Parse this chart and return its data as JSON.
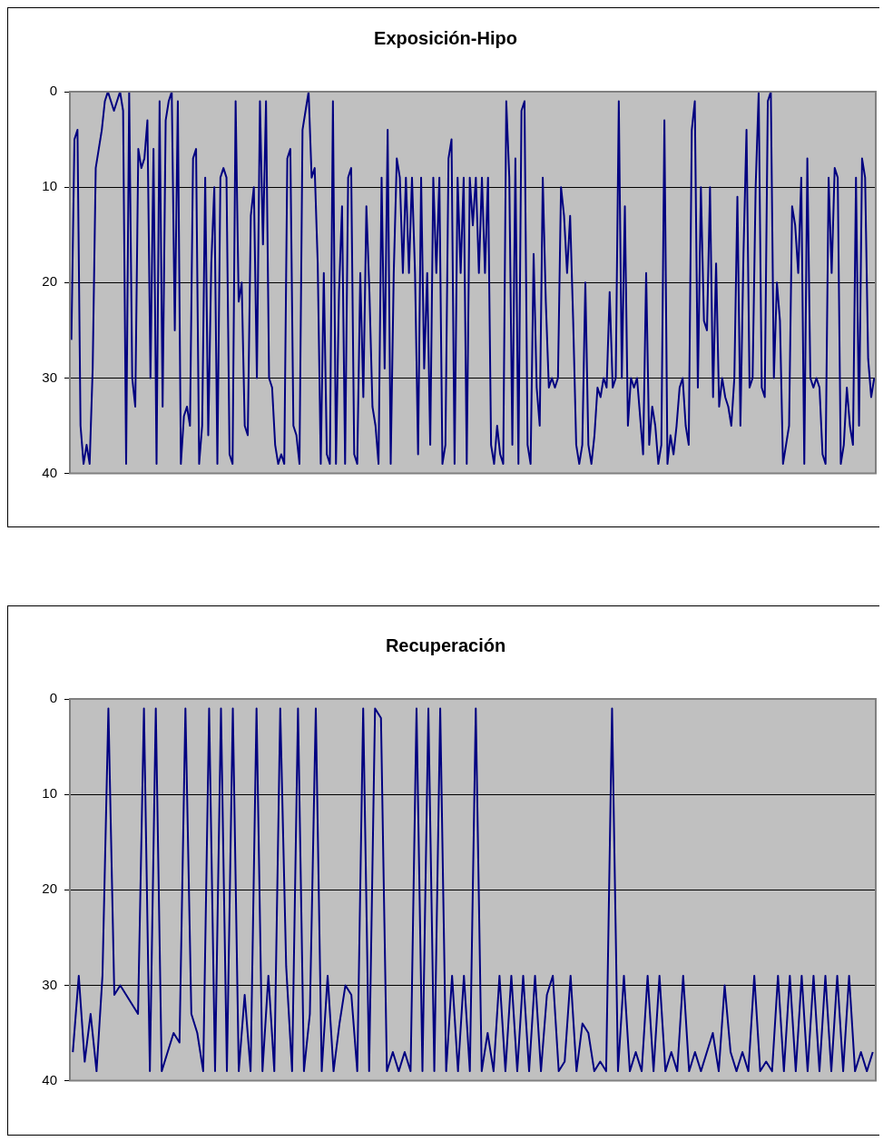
{
  "chart_data": [
    {
      "type": "line",
      "title": "Exposición-Hipo",
      "ylim": [
        40,
        0
      ],
      "yticks": [
        0,
        10,
        20,
        30,
        40
      ],
      "grid": "y",
      "marker": "none",
      "line_style": "solid",
      "categories": [
        null,
        null,
        null,
        null,
        null,
        null,
        null,
        null,
        null,
        null,
        null,
        null,
        null,
        null,
        null,
        null,
        null,
        null,
        null,
        null,
        null,
        null,
        null,
        null,
        null,
        null,
        null,
        null,
        null,
        null,
        null,
        null,
        null,
        null,
        null,
        null,
        null,
        null,
        null,
        null,
        null,
        null,
        null,
        null,
        null,
        null,
        null,
        null,
        null,
        null,
        null,
        null,
        null,
        null,
        null,
        null,
        null,
        null,
        null,
        null,
        null,
        null,
        null,
        null,
        null,
        null,
        null,
        null,
        null,
        null,
        null,
        null,
        null,
        null,
        null,
        null,
        null,
        null,
        null,
        null,
        null,
        null,
        null,
        null,
        null,
        null,
        null,
        null,
        null,
        null,
        null,
        null,
        null,
        null,
        null,
        null,
        null,
        null,
        null,
        null,
        null,
        null,
        null,
        null,
        null,
        null,
        null,
        null,
        null,
        null,
        null,
        null,
        null,
        null,
        null,
        null,
        null,
        null,
        null,
        null,
        null,
        null,
        null,
        null,
        null,
        null,
        null,
        null,
        null,
        null,
        null,
        null,
        null,
        null,
        null,
        null,
        null,
        null,
        null,
        null,
        null,
        null,
        null,
        null,
        null,
        null,
        null,
        null,
        null,
        null,
        null,
        null,
        null,
        null,
        null,
        null,
        null,
        null,
        null,
        null,
        null,
        null,
        null,
        null,
        null,
        null,
        null,
        null,
        null,
        null,
        null,
        null,
        null,
        null,
        null,
        null,
        null,
        null,
        null,
        null,
        null,
        null,
        null,
        null,
        null,
        null,
        null,
        null,
        null,
        null,
        null,
        null,
        null,
        null,
        null,
        null,
        null,
        null,
        null,
        null,
        null,
        null,
        null,
        null,
        null,
        null,
        null,
        null,
        null,
        null,
        null,
        null,
        null,
        null,
        null,
        null,
        null,
        null,
        null,
        null,
        null,
        null,
        null,
        null,
        null,
        null,
        null,
        null,
        null,
        null,
        null,
        null,
        null,
        null,
        null,
        null,
        null,
        null,
        null,
        null,
        null,
        null,
        null,
        null,
        null,
        null,
        null,
        null,
        null,
        null,
        null,
        null,
        null,
        null,
        null,
        null,
        null,
        null,
        null,
        null,
        null,
        null,
        null,
        null,
        null
      ],
      "series": [
        {
          "color": "#000080",
          "values": [
            26,
            5,
            4,
            35,
            39,
            37,
            39,
            29,
            8,
            6,
            4,
            1,
            0,
            1,
            2,
            1,
            0,
            2,
            39,
            0,
            30,
            33,
            6,
            8,
            7,
            3,
            30,
            6,
            39,
            1,
            33,
            3,
            1,
            0,
            25,
            1,
            39,
            34,
            33,
            35,
            7,
            6,
            39,
            35,
            9,
            36,
            18,
            10,
            39,
            9,
            8,
            9,
            38,
            39,
            1,
            22,
            20,
            35,
            36,
            13,
            10,
            30,
            1,
            16,
            1,
            30,
            31,
            37,
            39,
            38,
            39,
            7,
            6,
            35,
            36,
            39,
            4,
            2,
            0,
            9,
            8,
            18,
            39,
            19,
            38,
            39,
            1,
            39,
            21,
            12,
            39,
            9,
            8,
            38,
            39,
            19,
            32,
            12,
            21,
            33,
            35,
            39,
            9,
            29,
            4,
            39,
            19,
            7,
            9,
            19,
            9,
            19,
            9,
            19,
            38,
            9,
            29,
            19,
            37,
            9,
            19,
            9,
            39,
            37,
            7,
            5,
            39,
            9,
            19,
            9,
            39,
            9,
            14,
            9,
            19,
            9,
            19,
            9,
            37,
            39,
            35,
            38,
            39,
            1,
            9,
            37,
            7,
            39,
            2,
            1,
            37,
            39,
            17,
            31,
            35,
            9,
            22,
            31,
            30,
            31,
            30,
            10,
            13,
            19,
            13,
            24,
            37,
            39,
            37,
            20,
            37,
            39,
            36,
            31,
            32,
            30,
            31,
            21,
            31,
            30,
            1,
            30,
            12,
            35,
            30,
            31,
            30,
            34,
            38,
            19,
            37,
            33,
            35,
            39,
            37,
            3,
            39,
            36,
            38,
            35,
            31,
            30,
            35,
            37,
            4,
            1,
            31,
            10,
            24,
            25,
            10,
            32,
            18,
            33,
            30,
            32,
            33,
            35,
            30,
            11,
            35,
            17,
            4,
            31,
            30,
            10,
            0,
            31,
            32,
            1,
            0,
            30,
            20,
            24,
            39,
            37,
            35,
            12,
            14,
            19,
            9,
            39,
            7,
            30,
            31,
            30,
            31,
            38,
            39,
            9,
            19,
            8,
            9,
            39,
            37,
            31,
            35,
            37,
            9,
            35,
            7,
            9,
            28,
            32,
            30
          ]
        }
      ]
    },
    {
      "type": "line",
      "title": "Recuperación",
      "ylim": [
        40,
        0
      ],
      "yticks": [
        0,
        10,
        20,
        30,
        40
      ],
      "grid": "y",
      "marker": "none",
      "line_style": "solid",
      "categories": [
        null,
        null,
        null,
        null,
        null,
        null,
        null,
        null,
        null,
        null,
        null,
        null,
        null,
        null,
        null,
        null,
        null,
        null,
        null,
        null,
        null,
        null,
        null,
        null,
        null,
        null,
        null,
        null,
        null,
        null,
        null,
        null,
        null,
        null,
        null,
        null,
        null,
        null,
        null,
        null,
        null,
        null,
        null,
        null,
        null,
        null,
        null,
        null,
        null,
        null,
        null,
        null,
        null,
        null,
        null,
        null,
        null,
        null,
        null,
        null,
        null,
        null,
        null,
        null,
        null,
        null,
        null,
        null,
        null,
        null,
        null,
        null,
        null,
        null,
        null,
        null,
        null,
        null,
        null,
        null,
        null,
        null,
        null,
        null,
        null,
        null,
        null,
        null,
        null,
        null,
        null,
        null,
        null,
        null,
        null,
        null,
        null,
        null,
        null,
        null,
        null,
        null,
        null,
        null,
        null,
        null,
        null,
        null,
        null,
        null,
        null,
        null,
        null,
        null,
        null,
        null,
        null,
        null,
        null,
        null,
        null,
        null,
        null,
        null,
        null,
        null,
        null,
        null,
        null,
        null,
        null,
        null,
        null,
        null,
        null,
        null
      ],
      "series": [
        {
          "color": "#000080",
          "values": [
            37,
            29,
            38,
            33,
            39,
            29,
            1,
            31,
            30,
            31,
            32,
            33,
            1,
            39,
            1,
            39,
            37,
            35,
            36,
            1,
            33,
            35,
            39,
            1,
            39,
            1,
            39,
            1,
            39,
            31,
            39,
            1,
            39,
            29,
            39,
            1,
            28,
            39,
            1,
            39,
            33,
            1,
            39,
            29,
            39,
            34,
            30,
            31,
            39,
            1,
            39,
            1,
            2,
            39,
            37,
            39,
            37,
            39,
            1,
            39,
            1,
            39,
            1,
            39,
            29,
            39,
            29,
            39,
            1,
            39,
            35,
            39,
            29,
            39,
            29,
            39,
            29,
            39,
            29,
            39,
            31,
            29,
            39,
            38,
            29,
            39,
            34,
            35,
            39,
            38,
            39,
            1,
            39,
            29,
            39,
            37,
            39,
            29,
            39,
            29,
            39,
            37,
            39,
            29,
            39,
            37,
            39,
            37,
            35,
            39,
            30,
            37,
            39,
            37,
            39,
            29,
            39,
            38,
            39,
            29,
            39,
            29,
            39,
            29,
            39,
            29,
            39,
            29,
            39,
            29,
            39,
            29,
            39,
            37,
            39,
            37
          ]
        }
      ]
    }
  ]
}
